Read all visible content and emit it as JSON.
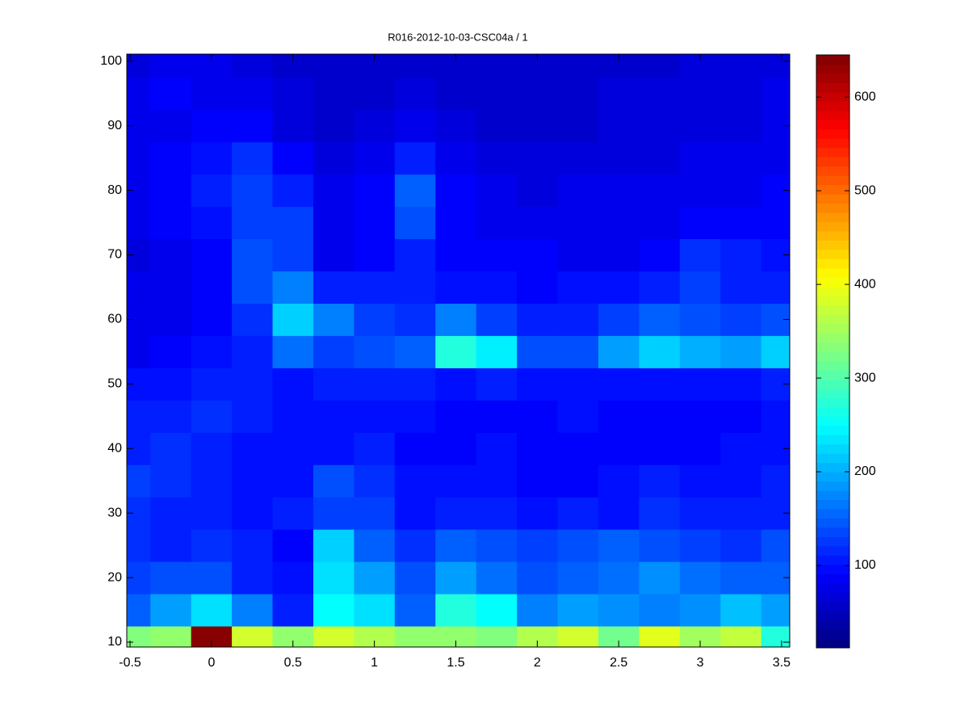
{
  "chart_data": {
    "type": "heatmap",
    "title": "R016-2012-10-03-CSC04a / 1",
    "colormap": "jet",
    "x": [
      -0.5,
      -0.25,
      0,
      0.25,
      0.5,
      0.75,
      1,
      1.25,
      1.5,
      1.75,
      2,
      2.25,
      2.5,
      2.75,
      3,
      3.25,
      3.5
    ],
    "y": [
      10,
      15,
      20,
      25,
      30,
      35,
      40,
      45,
      50,
      55,
      60,
      65,
      70,
      75,
      80,
      85,
      90,
      95,
      100
    ],
    "z": [
      [
        330,
        340,
        640,
        380,
        340,
        380,
        360,
        340,
        340,
        330,
        360,
        380,
        320,
        390,
        350,
        370,
        270
      ],
      [
        150,
        190,
        230,
        170,
        110,
        250,
        230,
        150,
        270,
        250,
        170,
        190,
        180,
        170,
        180,
        210,
        190
      ],
      [
        130,
        140,
        140,
        110,
        100,
        230,
        190,
        140,
        190,
        160,
        140,
        150,
        160,
        180,
        160,
        150,
        150
      ],
      [
        120,
        110,
        120,
        110,
        90,
        220,
        150,
        120,
        150,
        140,
        130,
        140,
        150,
        140,
        130,
        120,
        140
      ],
      [
        120,
        110,
        110,
        100,
        110,
        130,
        130,
        100,
        110,
        110,
        100,
        110,
        100,
        120,
        110,
        110,
        110
      ],
      [
        130,
        120,
        110,
        100,
        100,
        140,
        120,
        100,
        100,
        100,
        90,
        90,
        100,
        110,
        100,
        100,
        110
      ],
      [
        110,
        120,
        110,
        100,
        100,
        100,
        110,
        90,
        90,
        100,
        90,
        90,
        90,
        90,
        90,
        100,
        100
      ],
      [
        110,
        110,
        120,
        110,
        100,
        100,
        100,
        100,
        90,
        90,
        90,
        100,
        90,
        90,
        90,
        90,
        100
      ],
      [
        100,
        100,
        110,
        110,
        100,
        110,
        110,
        110,
        100,
        110,
        100,
        100,
        100,
        100,
        100,
        100,
        110
      ],
      [
        80,
        90,
        100,
        110,
        160,
        130,
        140,
        150,
        270,
        240,
        140,
        140,
        190,
        220,
        200,
        190,
        220
      ],
      [
        80,
        80,
        90,
        120,
        220,
        170,
        130,
        120,
        170,
        130,
        110,
        110,
        130,
        150,
        140,
        130,
        140
      ],
      [
        80,
        80,
        90,
        140,
        170,
        110,
        110,
        110,
        100,
        100,
        90,
        100,
        100,
        110,
        130,
        110,
        110
      ],
      [
        70,
        80,
        90,
        140,
        130,
        80,
        90,
        110,
        90,
        90,
        90,
        80,
        80,
        90,
        120,
        110,
        100
      ],
      [
        80,
        90,
        100,
        130,
        130,
        80,
        90,
        140,
        90,
        80,
        80,
        80,
        80,
        80,
        90,
        90,
        90
      ],
      [
        80,
        90,
        110,
        130,
        110,
        80,
        90,
        150,
        90,
        80,
        70,
        80,
        80,
        80,
        80,
        80,
        90
      ],
      [
        80,
        90,
        100,
        120,
        90,
        70,
        80,
        110,
        80,
        70,
        70,
        70,
        70,
        70,
        80,
        80,
        80
      ],
      [
        80,
        80,
        90,
        90,
        70,
        60,
        70,
        80,
        70,
        60,
        60,
        60,
        70,
        70,
        70,
        70,
        80
      ],
      [
        80,
        90,
        80,
        80,
        70,
        60,
        60,
        70,
        60,
        60,
        60,
        60,
        70,
        70,
        70,
        70,
        80
      ],
      [
        70,
        80,
        80,
        70,
        60,
        60,
        60,
        60,
        60,
        60,
        60,
        60,
        60,
        60,
        70,
        70,
        70
      ]
    ],
    "xlim": [
      -0.52,
      3.55
    ],
    "xticks": [
      -0.5,
      0,
      0.5,
      1,
      1.5,
      2,
      2.5,
      3,
      3.5
    ],
    "ylim": [
      9.25,
      101.1
    ],
    "yticks": [
      10,
      20,
      30,
      40,
      50,
      60,
      70,
      80,
      90,
      100
    ],
    "clim": [
      12,
      645
    ],
    "cticks": [
      100,
      200,
      300,
      400,
      500,
      600
    ]
  }
}
